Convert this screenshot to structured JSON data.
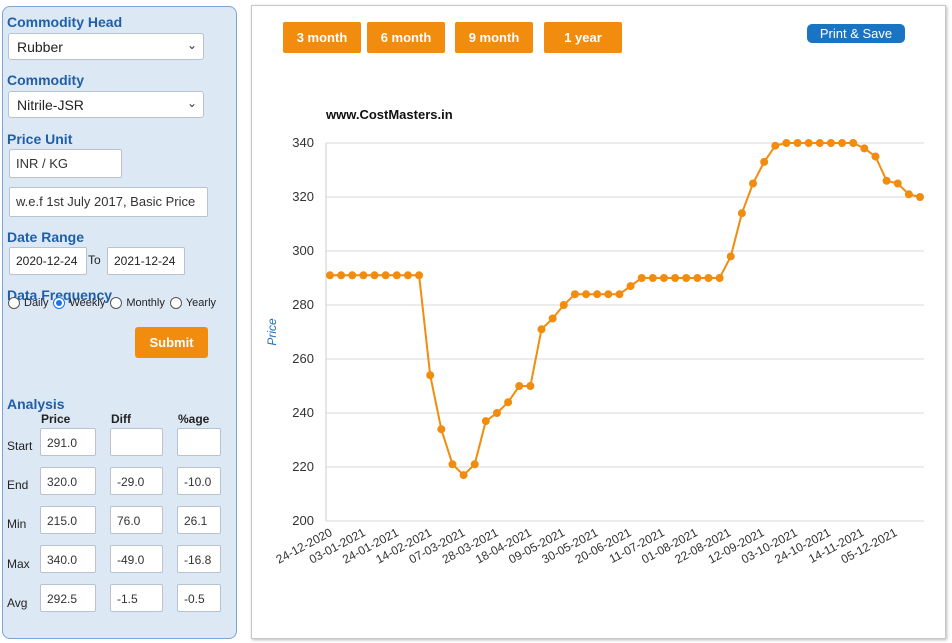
{
  "left": {
    "commodity_head_label": "Commodity Head",
    "commodity_head_value": "Rubber",
    "commodity_label": "Commodity",
    "commodity_value": "Nitrile-JSR",
    "price_unit_label": "Price Unit",
    "price_unit_value": "INR / KG",
    "basis_value": "w.e.f 1st July 2017, Basic Price",
    "date_range_label": "Date Range",
    "date_from": "2020-12-24",
    "date_to_label": "To",
    "date_to": "2021-12-24",
    "frequency_label": "Data Frequency",
    "freq_daily": "Daily",
    "freq_weekly": "Weekly",
    "freq_monthly": "Monthly",
    "freq_yearly": "Yearly",
    "submit_label": "Submit",
    "analysis_label": "Analysis",
    "col_price": "Price",
    "col_diff": "Diff",
    "col_pct": "%age",
    "rows": [
      {
        "label": "Start",
        "price": "291.0",
        "diff": "",
        "pct": ""
      },
      {
        "label": "End",
        "price": "320.0",
        "diff": "-29.0",
        "pct": "-10.0"
      },
      {
        "label": "Min",
        "price": "215.0",
        "diff": "76.0",
        "pct": "26.1"
      },
      {
        "label": "Max",
        "price": "340.0",
        "diff": "-49.0",
        "pct": "-16.8"
      },
      {
        "label": "Avg",
        "price": "292.5",
        "diff": "-1.5",
        "pct": "-0.5"
      }
    ]
  },
  "right": {
    "btn_3m": "3 month",
    "btn_6m": "6 month",
    "btn_9m": "9 month",
    "btn_1y": "1 year",
    "print_label": "Print & Save"
  },
  "chart_data": {
    "type": "line",
    "title": "www.CostMasters.in",
    "ylabel": "Price",
    "xlabel": "",
    "ylim": [
      200,
      340
    ],
    "yticks": [
      200,
      220,
      240,
      260,
      280,
      300,
      320,
      340
    ],
    "xticks": [
      "24-12-2020",
      "03-01-2021",
      "24-01-2021",
      "14-02-2021",
      "07-03-2021",
      "28-03-2021",
      "18-04-2021",
      "09-05-2021",
      "30-05-2021",
      "20-06-2021",
      "11-07-2021",
      "01-08-2021",
      "22-08-2021",
      "12-09-2021",
      "03-10-2021",
      "24-10-2021",
      "14-11-2021",
      "05-12-2021"
    ],
    "color": "#f28c0f",
    "values": [
      291,
      291,
      291,
      291,
      291,
      291,
      291,
      291,
      291,
      254,
      234,
      221,
      217,
      221,
      237,
      240,
      244,
      250,
      250,
      271,
      275,
      280,
      284,
      284,
      284,
      284,
      284,
      287,
      290,
      290,
      290,
      290,
      290,
      290,
      290,
      290,
      298,
      314,
      325,
      333,
      339,
      340,
      340,
      340,
      340,
      340,
      340,
      340,
      338,
      335,
      326,
      325,
      321,
      320
    ]
  }
}
